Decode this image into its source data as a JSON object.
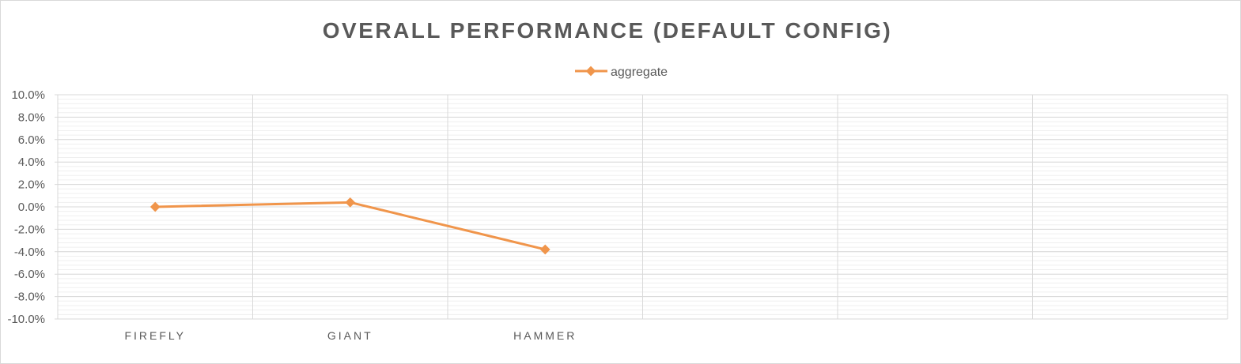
{
  "chart_data": {
    "type": "line",
    "title": "OVERALL PERFORMANCE (DEFAULT CONFIG)",
    "xlabel": "",
    "ylabel": "",
    "categories": [
      "FIREFLY",
      "GIANT",
      "HAMMER",
      "",
      "",
      ""
    ],
    "series": [
      {
        "name": "aggregate",
        "values": [
          0.0,
          0.4,
          -3.8,
          null,
          null,
          null
        ]
      }
    ],
    "ylim": [
      -10,
      10
    ],
    "y_ticks": [
      "10.0%",
      "8.0%",
      "6.0%",
      "4.0%",
      "2.0%",
      "0.0%",
      "-2.0%",
      "-4.0%",
      "-6.0%",
      "-8.0%",
      "-10.0%"
    ],
    "y_tick_values": [
      10,
      8,
      6,
      4,
      2,
      0,
      -2,
      -4,
      -6,
      -8,
      -10
    ],
    "grid": true,
    "legend_position": "top",
    "colors": {
      "series": "#f0954b",
      "grid_major": "#d9d9d9",
      "grid_minor": "#efefef",
      "text": "#595959"
    }
  }
}
